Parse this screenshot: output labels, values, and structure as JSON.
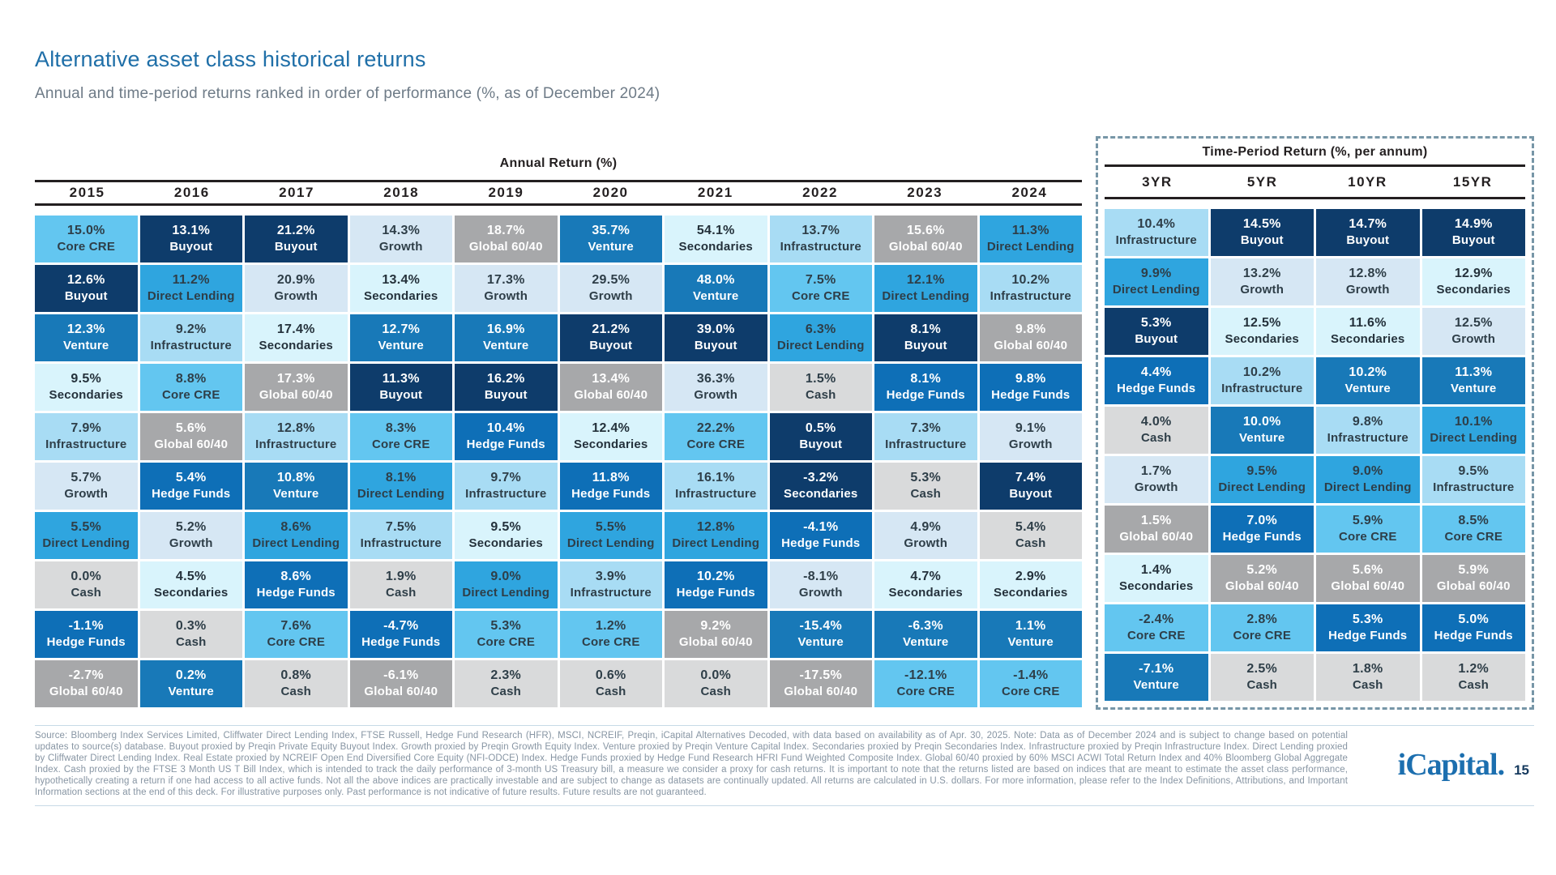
{
  "page": {
    "title": "Alternative asset class historical returns",
    "subtitle": "Annual and time-period returns ranked in order of performance (%, as of December 2024)",
    "logo_text": "iCapital.",
    "page_number": "15"
  },
  "colors": {
    "title_accent": "#1F6FA8",
    "logo_blue": "#1C6FAF",
    "dashed_border": "#7796A7",
    "header_rule": "#231F20",
    "footnote_gray": "#8795A3"
  },
  "asset_colors": {
    "Core CRE": {
      "bg": "#63C6F0",
      "fg": "#2E3E48"
    },
    "Buyout": {
      "bg": "#0E3C6B",
      "fg": "#FFFFFF"
    },
    "Venture": {
      "bg": "#1879B8",
      "fg": "#FFFFFF"
    },
    "Secondaries": {
      "bg": "#D9F4FC",
      "fg": "#24313B"
    },
    "Infrastructure": {
      "bg": "#A8DCF4",
      "fg": "#2E3E48"
    },
    "Growth": {
      "bg": "#D6E7F4",
      "fg": "#2E3E48"
    },
    "Direct Lending": {
      "bg": "#2FA5DF",
      "fg": "#2E3E48"
    },
    "Global 60/40": {
      "bg": "#A7A8AA",
      "fg": "#FFFFFF"
    },
    "Hedge Funds": {
      "bg": "#0E6FB7",
      "fg": "#FFFFFF"
    },
    "Cash": {
      "bg": "#D9DADB",
      "fg": "#2E3E48"
    }
  },
  "dark_override": {
    "bg": "#0E3C6B",
    "fg": "#FFFFFF"
  },
  "chart_data": {
    "type": "table",
    "title": "Alternative asset class historical returns",
    "subtitle": "Annual and time-period returns ranked in order of performance (%, as of December 2024)",
    "annual": {
      "caption": "Annual Return (%)",
      "years": [
        "2015",
        "2016",
        "2017",
        "2018",
        "2019",
        "2020",
        "2021",
        "2022",
        "2023",
        "2024"
      ],
      "columns": [
        [
          [
            "15.0%",
            "Core CRE"
          ],
          [
            "12.6%",
            "Buyout"
          ],
          [
            "12.3%",
            "Venture"
          ],
          [
            "9.5%",
            "Secondaries"
          ],
          [
            "7.9%",
            "Infrastructure"
          ],
          [
            "5.7%",
            "Growth"
          ],
          [
            "5.5%",
            "Direct Lending"
          ],
          [
            "0.0%",
            "Cash"
          ],
          [
            "-1.1%",
            "Hedge Funds"
          ],
          [
            "-2.7%",
            "Global 60/40"
          ]
        ],
        [
          [
            "13.1%",
            "Buyout"
          ],
          [
            "11.2%",
            "Direct Lending"
          ],
          [
            "9.2%",
            "Infrastructure"
          ],
          [
            "8.8%",
            "Core CRE"
          ],
          [
            "5.6%",
            "Global 60/40"
          ],
          [
            "5.4%",
            "Hedge Funds"
          ],
          [
            "5.2%",
            "Growth"
          ],
          [
            "4.5%",
            "Secondaries"
          ],
          [
            "0.3%",
            "Cash"
          ],
          [
            "0.2%",
            "Venture"
          ]
        ],
        [
          [
            "21.2%",
            "Buyout"
          ],
          [
            "20.9%",
            "Growth"
          ],
          [
            "17.4%",
            "Secondaries"
          ],
          [
            "17.3%",
            "Global 60/40"
          ],
          [
            "12.8%",
            "Infrastructure"
          ],
          [
            "10.8%",
            "Venture"
          ],
          [
            "8.6%",
            "Direct Lending"
          ],
          [
            "8.6%",
            "Hedge Funds"
          ],
          [
            "7.6%",
            "Core CRE"
          ],
          [
            "0.8%",
            "Cash"
          ]
        ],
        [
          [
            "14.3%",
            "Growth"
          ],
          [
            "13.4%",
            "Secondaries"
          ],
          [
            "12.7%",
            "Venture"
          ],
          [
            "11.3%",
            "Buyout"
          ],
          [
            "8.3%",
            "Core CRE"
          ],
          [
            "8.1%",
            "Direct Lending"
          ],
          [
            "7.5%",
            "Infrastructure"
          ],
          [
            "1.9%",
            "Cash"
          ],
          [
            "-4.7%",
            "Hedge Funds"
          ],
          [
            "-6.1%",
            "Global 60/40"
          ]
        ],
        [
          [
            "18.7%",
            "Global 60/40"
          ],
          [
            "17.3%",
            "Growth"
          ],
          [
            "16.9%",
            "Venture"
          ],
          [
            "16.2%",
            "Buyout"
          ],
          [
            "10.4%",
            "Hedge Funds"
          ],
          [
            "9.7%",
            "Infrastructure"
          ],
          [
            "9.5%",
            "Secondaries"
          ],
          [
            "9.0%",
            "Direct Lending"
          ],
          [
            "5.3%",
            "Core CRE"
          ],
          [
            "2.3%",
            "Cash"
          ]
        ],
        [
          [
            "35.7%",
            "Venture"
          ],
          [
            "29.5%",
            "Growth"
          ],
          [
            "21.2%",
            "Buyout"
          ],
          [
            "13.4%",
            "Global 60/40"
          ],
          [
            "12.4%",
            "Secondaries"
          ],
          [
            "11.8%",
            "Hedge Funds"
          ],
          [
            "5.5%",
            "Direct Lending"
          ],
          [
            "3.9%",
            "Infrastructure"
          ],
          [
            "1.2%",
            "Core CRE"
          ],
          [
            "0.6%",
            "Cash"
          ]
        ],
        [
          [
            "54.1%",
            "Secondaries"
          ],
          [
            "48.0%",
            "Venture"
          ],
          [
            "39.0%",
            "Buyout"
          ],
          [
            "36.3%",
            "Growth"
          ],
          [
            "22.2%",
            "Core CRE"
          ],
          [
            "16.1%",
            "Infrastructure"
          ],
          [
            "12.8%",
            "Direct Lending"
          ],
          [
            "10.2%",
            "Hedge Funds"
          ],
          [
            "9.2%",
            "Global 60/40"
          ],
          [
            "0.0%",
            "Cash"
          ]
        ],
        [
          [
            "13.7%",
            "Infrastructure"
          ],
          [
            "7.5%",
            "Core CRE"
          ],
          [
            "6.3%",
            "Direct Lending"
          ],
          [
            "1.5%",
            "Cash"
          ],
          [
            "0.5%",
            "Buyout"
          ],
          [
            "-3.2%",
            "Secondaries",
            "dark"
          ],
          [
            "-4.1%",
            "Hedge Funds"
          ],
          [
            "-8.1%",
            "Growth"
          ],
          [
            "-15.4%",
            "Venture"
          ],
          [
            "-17.5%",
            "Global 60/40"
          ]
        ],
        [
          [
            "15.6%",
            "Global 60/40"
          ],
          [
            "12.1%",
            "Direct Lending"
          ],
          [
            "8.1%",
            "Buyout"
          ],
          [
            "8.1%",
            "Hedge Funds"
          ],
          [
            "7.3%",
            "Infrastructure"
          ],
          [
            "5.3%",
            "Cash"
          ],
          [
            "4.9%",
            "Growth"
          ],
          [
            "4.7%",
            "Secondaries"
          ],
          [
            "-6.3%",
            "Venture"
          ],
          [
            "-12.1%",
            "Core CRE"
          ]
        ],
        [
          [
            "11.3%",
            "Direct Lending"
          ],
          [
            "10.2%",
            "Infrastructure"
          ],
          [
            "9.8%",
            "Global 60/40"
          ],
          [
            "9.8%",
            "Hedge Funds"
          ],
          [
            "9.1%",
            "Growth"
          ],
          [
            "7.4%",
            "Buyout"
          ],
          [
            "5.4%",
            "Cash"
          ],
          [
            "2.9%",
            "Secondaries"
          ],
          [
            "1.1%",
            "Venture"
          ],
          [
            "-1.4%",
            "Core CRE"
          ]
        ]
      ]
    },
    "time_period": {
      "caption": "Time-Period Return (%, per annum)",
      "periods": [
        "3YR",
        "5YR",
        "10YR",
        "15YR"
      ],
      "columns": [
        [
          [
            "10.4%",
            "Infrastructure"
          ],
          [
            "9.9%",
            "Direct Lending"
          ],
          [
            "5.3%",
            "Buyout"
          ],
          [
            "4.4%",
            "Hedge Funds"
          ],
          [
            "4.0%",
            "Cash"
          ],
          [
            "1.7%",
            "Growth"
          ],
          [
            "1.5%",
            "Global 60/40"
          ],
          [
            "1.4%",
            "Secondaries"
          ],
          [
            "-2.4%",
            "Core CRE"
          ],
          [
            "-7.1%",
            "Venture"
          ]
        ],
        [
          [
            "14.5%",
            "Buyout"
          ],
          [
            "13.2%",
            "Growth"
          ],
          [
            "12.5%",
            "Secondaries"
          ],
          [
            "10.2%",
            "Infrastructure"
          ],
          [
            "10.0%",
            "Venture"
          ],
          [
            "9.5%",
            "Direct Lending"
          ],
          [
            "7.0%",
            "Hedge Funds"
          ],
          [
            "5.2%",
            "Global 60/40"
          ],
          [
            "2.8%",
            "Core CRE"
          ],
          [
            "2.5%",
            "Cash"
          ]
        ],
        [
          [
            "14.7%",
            "Buyout"
          ],
          [
            "12.8%",
            "Growth"
          ],
          [
            "11.6%",
            "Secondaries"
          ],
          [
            "10.2%",
            "Venture"
          ],
          [
            "9.8%",
            "Infrastructure"
          ],
          [
            "9.0%",
            "Direct Lending"
          ],
          [
            "5.9%",
            "Core CRE"
          ],
          [
            "5.6%",
            "Global 60/40"
          ],
          [
            "5.3%",
            "Hedge Funds"
          ],
          [
            "1.8%",
            "Cash"
          ]
        ],
        [
          [
            "14.9%",
            "Buyout"
          ],
          [
            "12.9%",
            "Secondaries"
          ],
          [
            "12.5%",
            "Growth"
          ],
          [
            "11.3%",
            "Venture"
          ],
          [
            "10.1%",
            "Direct Lending"
          ],
          [
            "9.5%",
            "Infrastructure"
          ],
          [
            "8.5%",
            "Core CRE"
          ],
          [
            "5.9%",
            "Global 60/40"
          ],
          [
            "5.0%",
            "Hedge Funds"
          ],
          [
            "1.2%",
            "Cash"
          ]
        ]
      ]
    }
  },
  "footnote": "Source: Bloomberg Index Services Limited, Cliffwater Direct Lending Index, FTSE Russell, Hedge Fund Research (HFR), MSCI, NCREIF, Preqin, iCapital Alternatives Decoded, with data based on availability as of Apr. 30, 2025. Note: Data as of December 2024 and is subject to change based on potential updates to source(s) database. Buyout proxied by Preqin Private Equity Buyout Index. Growth proxied by Preqin Growth Equity Index. Venture proxied by Preqin Venture Capital Index. Secondaries proxied by Preqin Secondaries Index. Infrastructure proxied by Preqin Infrastructure Index. Direct Lending proxied by Cliffwater Direct Lending Index. Real Estate proxied by NCREIF Open End Diversified Core Equity (NFI-ODCE) Index. Hedge Funds proxied by Hedge Fund Research HFRI Fund Weighted Composite Index. Global 60/40 proxied by 60% MSCI ACWI Total Return Index and 40% Bloomberg Global Aggregate Index. Cash proxied by the FTSE 3 Month US T Bill Index, which is intended to track the daily performance of 3-month US Treasury bill, a measure we consider a proxy for cash returns. It is important to note that the returns listed are based on indices that are meant to estimate the asset class performance, hypothetically creating a return if one had access to all active funds. Not all the above indices are practically investable and are subject to change as datasets are continually updated. All returns are calculated in U.S. dollars. For more information, please refer to the Index Definitions, Attributions, and Important Information sections at the end of this deck. For illustrative purposes only. Past performance is not indicative of future results. Future results are not guaranteed."
}
